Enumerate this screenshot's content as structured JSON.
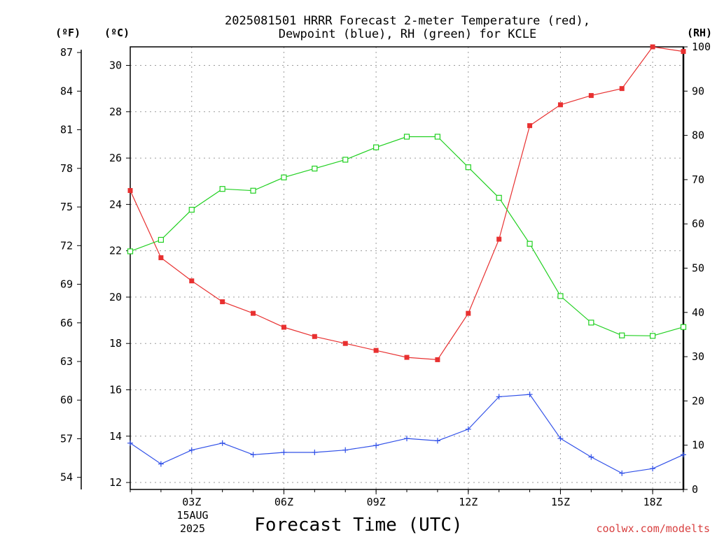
{
  "chart_data": {
    "type": "line",
    "title": [
      "2025081501 HRRR Forecast 2-meter Temperature (red),",
      "Dewpoint (blue), RH (green) for KCLE"
    ],
    "xlabel": "Forecast Time (UTC)",
    "credit": "coolwx.com/modelts",
    "date_labels": [
      "15AUG",
      "2025"
    ],
    "x_hours": [
      1,
      2,
      3,
      4,
      5,
      6,
      7,
      8,
      9,
      10,
      11,
      12,
      13,
      14,
      15,
      16,
      17,
      18,
      19
    ],
    "x_ticks": [
      {
        "hour": 3,
        "label": "03Z"
      },
      {
        "hour": 6,
        "label": "06Z"
      },
      {
        "hour": 9,
        "label": "09Z"
      },
      {
        "hour": 12,
        "label": "12Z"
      },
      {
        "hour": 15,
        "label": "15Z"
      },
      {
        "hour": 18,
        "label": "18Z"
      }
    ],
    "xlim": [
      1,
      19
    ],
    "celsius_axis": {
      "unit_label": "(ºC)",
      "ylim": [
        11.7,
        30.8
      ],
      "ticks": [
        12,
        14,
        16,
        18,
        20,
        22,
        24,
        26,
        28,
        30
      ]
    },
    "fahrenheit_axis": {
      "unit_label": "(ºF)",
      "ticks": [
        54,
        57,
        60,
        63,
        66,
        69,
        72,
        75,
        78,
        81,
        84,
        87
      ]
    },
    "rh_axis": {
      "unit_label": "(RH)",
      "ylim": [
        0,
        100
      ],
      "ticks": [
        0,
        10,
        20,
        30,
        40,
        50,
        60,
        70,
        80,
        90,
        100
      ]
    },
    "grid": true,
    "series": [
      {
        "axis": "celsius",
        "color": "#e83030",
        "marker": "filled-square",
        "values": [
          24.6,
          21.7,
          20.7,
          19.8,
          19.3,
          18.7,
          18.3,
          18.0,
          17.7,
          17.4,
          17.3,
          19.3,
          22.5,
          27.4,
          28.3,
          28.7,
          29.0,
          30.8,
          30.6
        ]
      },
      {
        "axis": "celsius",
        "color": "#3050e8",
        "marker": "plus",
        "values": [
          13.7,
          12.8,
          13.4,
          13.7,
          13.2,
          13.3,
          13.3,
          13.4,
          13.6,
          13.9,
          13.8,
          14.3,
          15.7,
          15.8,
          13.9,
          13.1,
          12.4,
          12.6,
          13.2
        ]
      },
      {
        "axis": "rh",
        "color": "#20d020",
        "marker": "open-square",
        "values": [
          53.8,
          56.4,
          63.2,
          67.9,
          67.5,
          70.5,
          72.5,
          74.5,
          77.3,
          79.7,
          79.7,
          72.8,
          65.9,
          55.5,
          43.7,
          37.7,
          34.8,
          34.7,
          36.7
        ]
      }
    ]
  }
}
